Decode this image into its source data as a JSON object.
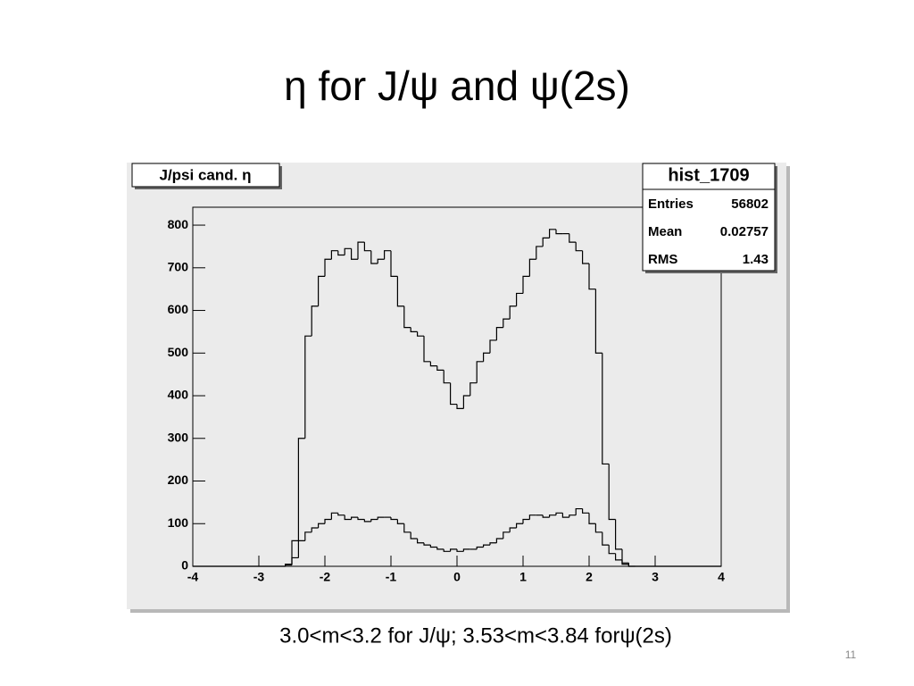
{
  "chart_data": {
    "type": "histogram",
    "title": "η for J/ψ and ψ(2s)",
    "label": "J/psi cand. η",
    "stats": {
      "title": "hist_1709",
      "rows": [
        [
          "Entries",
          "56802"
        ],
        [
          "Mean",
          "0.02757"
        ],
        [
          "RMS",
          "1.43"
        ]
      ]
    },
    "caption": "3.0<m<3.2 for J/ψ;  3.53<m<3.84 forψ(2s)",
    "page_number": "11",
    "bins": [
      -4,
      -3.9,
      -3.8,
      -3.7,
      -3.6,
      -3.5,
      -3.4,
      -3.3,
      -3.2,
      -3.1,
      -3,
      -2.9,
      -2.8,
      -2.7,
      -2.6,
      -2.5,
      -2.4,
      -2.3,
      -2.2,
      -2.1,
      -2,
      -1.9,
      -1.8,
      -1.7,
      -1.6,
      -1.5,
      -1.4,
      -1.3,
      -1.2,
      -1.1,
      -1,
      -0.9,
      -0.8,
      -0.7,
      -0.6,
      -0.5,
      -0.4,
      -0.3,
      -0.2,
      -0.1,
      0,
      0.1,
      0.2,
      0.3,
      0.4,
      0.5,
      0.6,
      0.7,
      0.8,
      0.9,
      1,
      1.1,
      1.2,
      1.3,
      1.4,
      1.5,
      1.6,
      1.7,
      1.8,
      1.9,
      2,
      2.1,
      2.2,
      2.3,
      2.4,
      2.5,
      2.6,
      2.7,
      2.8,
      2.9,
      3,
      3.1,
      3.2,
      3.3,
      3.4,
      3.5,
      3.6,
      3.7,
      3.8,
      3.9,
      4
    ],
    "series": [
      {
        "color": "#000000",
        "values": [
          0,
          0,
          0,
          0,
          0,
          0,
          0,
          0,
          0,
          0,
          0,
          0,
          0,
          0,
          5,
          60,
          300,
          540,
          610,
          680,
          720,
          740,
          730,
          745,
          720,
          760,
          740,
          710,
          720,
          740,
          680,
          610,
          560,
          550,
          540,
          480,
          470,
          460,
          430,
          380,
          370,
          400,
          430,
          480,
          500,
          530,
          560,
          580,
          610,
          640,
          680,
          720,
          750,
          770,
          790,
          780,
          780,
          760,
          740,
          710,
          650,
          500,
          240,
          110,
          40,
          8,
          0,
          0,
          0,
          0,
          0,
          0,
          0,
          0,
          0,
          0,
          0,
          0,
          0,
          0
        ]
      },
      {
        "color": "#000000",
        "values": [
          0,
          0,
          0,
          0,
          0,
          0,
          0,
          0,
          0,
          0,
          0,
          0,
          0,
          0,
          3,
          20,
          60,
          80,
          90,
          100,
          110,
          125,
          120,
          110,
          115,
          110,
          105,
          110,
          115,
          115,
          110,
          100,
          80,
          65,
          55,
          50,
          45,
          40,
          35,
          40,
          35,
          40,
          40,
          45,
          50,
          55,
          65,
          80,
          90,
          100,
          110,
          120,
          120,
          115,
          120,
          125,
          115,
          120,
          135,
          125,
          100,
          80,
          50,
          30,
          15,
          5,
          0,
          0,
          0,
          0,
          0,
          0,
          0,
          0,
          0,
          0,
          0,
          0,
          0,
          0
        ]
      }
    ],
    "xlim": [
      -4,
      4
    ],
    "ylim": [
      0,
      842
    ],
    "xticks": [
      -4,
      -3,
      -2,
      -1,
      0,
      1,
      2,
      3,
      4
    ],
    "yticks": [
      0,
      100,
      200,
      300,
      400,
      500,
      600,
      700,
      800
    ]
  }
}
